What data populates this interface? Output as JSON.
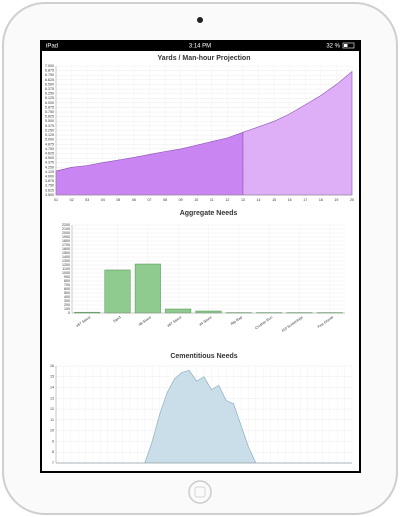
{
  "status_bar": {
    "device": "iPad",
    "time": "3:14 PM",
    "battery": "32 %"
  },
  "chart_data": [
    {
      "type": "area",
      "title": "Yards / Man-hour Projection",
      "categories": [
        "01",
        "02",
        "03",
        "04",
        "05",
        "06",
        "07",
        "08",
        "09",
        "10",
        "11",
        "12",
        "13",
        "14",
        "15",
        "16",
        "17",
        "18",
        "19",
        "20"
      ],
      "series": [
        {
          "color": "#c67ef0",
          "values": [
            4.15,
            4.25,
            4.3,
            4.38,
            4.45,
            4.52,
            4.6,
            4.68,
            4.75,
            4.85,
            4.95,
            5.05,
            5.2,
            null,
            null,
            null,
            null,
            null,
            null,
            null
          ]
        },
        {
          "color": "#dcaaf6",
          "values": [
            null,
            null,
            null,
            null,
            null,
            null,
            null,
            null,
            null,
            null,
            null,
            null,
            5.2,
            5.35,
            5.5,
            5.7,
            5.95,
            6.2,
            6.5,
            6.85
          ]
        }
      ],
      "ylim": [
        3.5,
        7.0
      ],
      "yticks": [
        {
          "value": 3.5,
          "label": "3.500"
        },
        {
          "value": 3.625,
          "label": "3.625"
        },
        {
          "value": 3.75,
          "label": "3.750"
        },
        {
          "value": 3.875,
          "label": "3.875"
        },
        {
          "value": 4,
          "label": "4.000"
        },
        {
          "value": 4.125,
          "label": "4.125"
        },
        {
          "value": 4.25,
          "label": "4.250"
        },
        {
          "value": 4.375,
          "label": "4.375"
        },
        {
          "value": 4.5,
          "label": "4.500"
        },
        {
          "value": 4.625,
          "label": "4.625"
        },
        {
          "value": 4.75,
          "label": "4.750"
        },
        {
          "value": 4.875,
          "label": "4.875"
        },
        {
          "value": 5,
          "label": "5.000"
        },
        {
          "value": 5.125,
          "label": "5.125"
        },
        {
          "value": 5.25,
          "label": "5.250"
        },
        {
          "value": 5.375,
          "label": "5.375"
        },
        {
          "value": 5.5,
          "label": "5.500"
        },
        {
          "value": 5.625,
          "label": "5.625"
        },
        {
          "value": 5.75,
          "label": "5.750"
        },
        {
          "value": 5.875,
          "label": "5.875"
        },
        {
          "value": 6,
          "label": "6.000"
        },
        {
          "value": 6.125,
          "label": "6.125"
        },
        {
          "value": 6.25,
          "label": "6.250"
        },
        {
          "value": 6.375,
          "label": "6.375"
        },
        {
          "value": 6.5,
          "label": "6.500"
        },
        {
          "value": 6.625,
          "label": "6.625"
        },
        {
          "value": 6.75,
          "label": "6.750"
        },
        {
          "value": 6.875,
          "label": "6.875"
        },
        {
          "value": 7,
          "label": "7.000"
        }
      ],
      "grid": true
    },
    {
      "type": "bar",
      "title": "Aggregate Needs",
      "categories": [
        "#57 Stone",
        "Sand",
        "#8 Stone",
        "#67 Stone",
        "#4 Stone",
        "Rip Rap",
        "Crusher Run",
        "#10 Screenings",
        "Pea Gravel"
      ],
      "values": [
        20,
        1075,
        1225,
        100,
        50,
        10,
        10,
        10,
        10
      ],
      "color": "#8fca8f",
      "ylim": [
        0,
        2200
      ],
      "yticks": [
        0,
        100,
        200,
        300,
        400,
        500,
        600,
        700,
        800,
        900,
        1000,
        1100,
        1200,
        1300,
        1400,
        1500,
        1600,
        1700,
        1800,
        1900,
        2000,
        2100,
        2200
      ],
      "grid": true
    },
    {
      "type": "area",
      "title": "Cementitious Needs",
      "x": [
        0,
        1,
        2,
        3,
        4,
        5,
        6,
        7,
        8,
        9,
        10,
        11,
        12,
        13,
        14,
        15,
        16,
        17,
        18,
        19,
        20,
        21,
        22,
        23,
        24,
        25,
        26,
        27,
        28,
        29,
        30,
        31,
        32,
        33,
        34,
        35,
        36,
        37,
        38,
        39,
        40
      ],
      "values": [
        7,
        7,
        7,
        7,
        7,
        7,
        7,
        7,
        7,
        7,
        7,
        7,
        7,
        9,
        11.5,
        13.5,
        14.8,
        15.4,
        15.6,
        14.6,
        15,
        13.8,
        14.2,
        12.8,
        12.5,
        10.5,
        8.5,
        7,
        7,
        7,
        7,
        7,
        7,
        7,
        7,
        7,
        7,
        7,
        7,
        7,
        7
      ],
      "color": "#c6dce7",
      "xlim": [
        0,
        40
      ],
      "ylim": [
        7,
        16
      ],
      "yticks": [
        7,
        8,
        9,
        10,
        11,
        12,
        13,
        14,
        15,
        16
      ],
      "grid": true
    }
  ]
}
